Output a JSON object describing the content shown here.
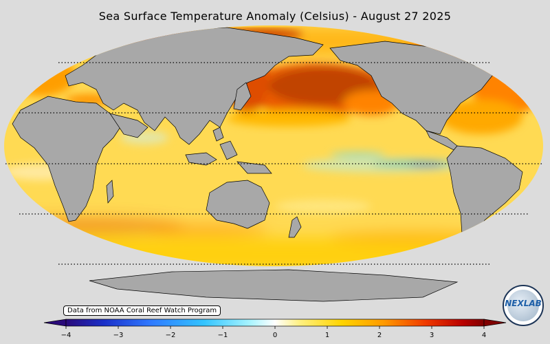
{
  "title": "Sea Surface Temperature Anomaly (Celsius) - August 27 2025",
  "source_note": "Data from NOAA Coral Reef Watch Program",
  "colorbar": {
    "min": -4,
    "max": 4,
    "ticks": [
      "−4",
      "−3",
      "−2",
      "−1",
      "0",
      "1",
      "2",
      "3",
      "4"
    ],
    "colors": [
      "#2a0a7a",
      "#1a2fc8",
      "#2f78ff",
      "#33c4ff",
      "#a8f4ff",
      "#ffffff",
      "#fff080",
      "#ffd400",
      "#ff9a00",
      "#f03a00",
      "#b80000",
      "#800000"
    ]
  },
  "map": {
    "projection": "Robinson",
    "ocean_base_color": "#ffe680",
    "land_color": "#a8a8a8",
    "features": [
      "pacific-warm-anomaly",
      "equatorial-pacific-cool-anomaly",
      "north-atlantic-warm-anomaly",
      "antarctica"
    ]
  },
  "logo": {
    "text": "NEXLAB",
    "icon": "nexlab-globe-logo"
  }
}
